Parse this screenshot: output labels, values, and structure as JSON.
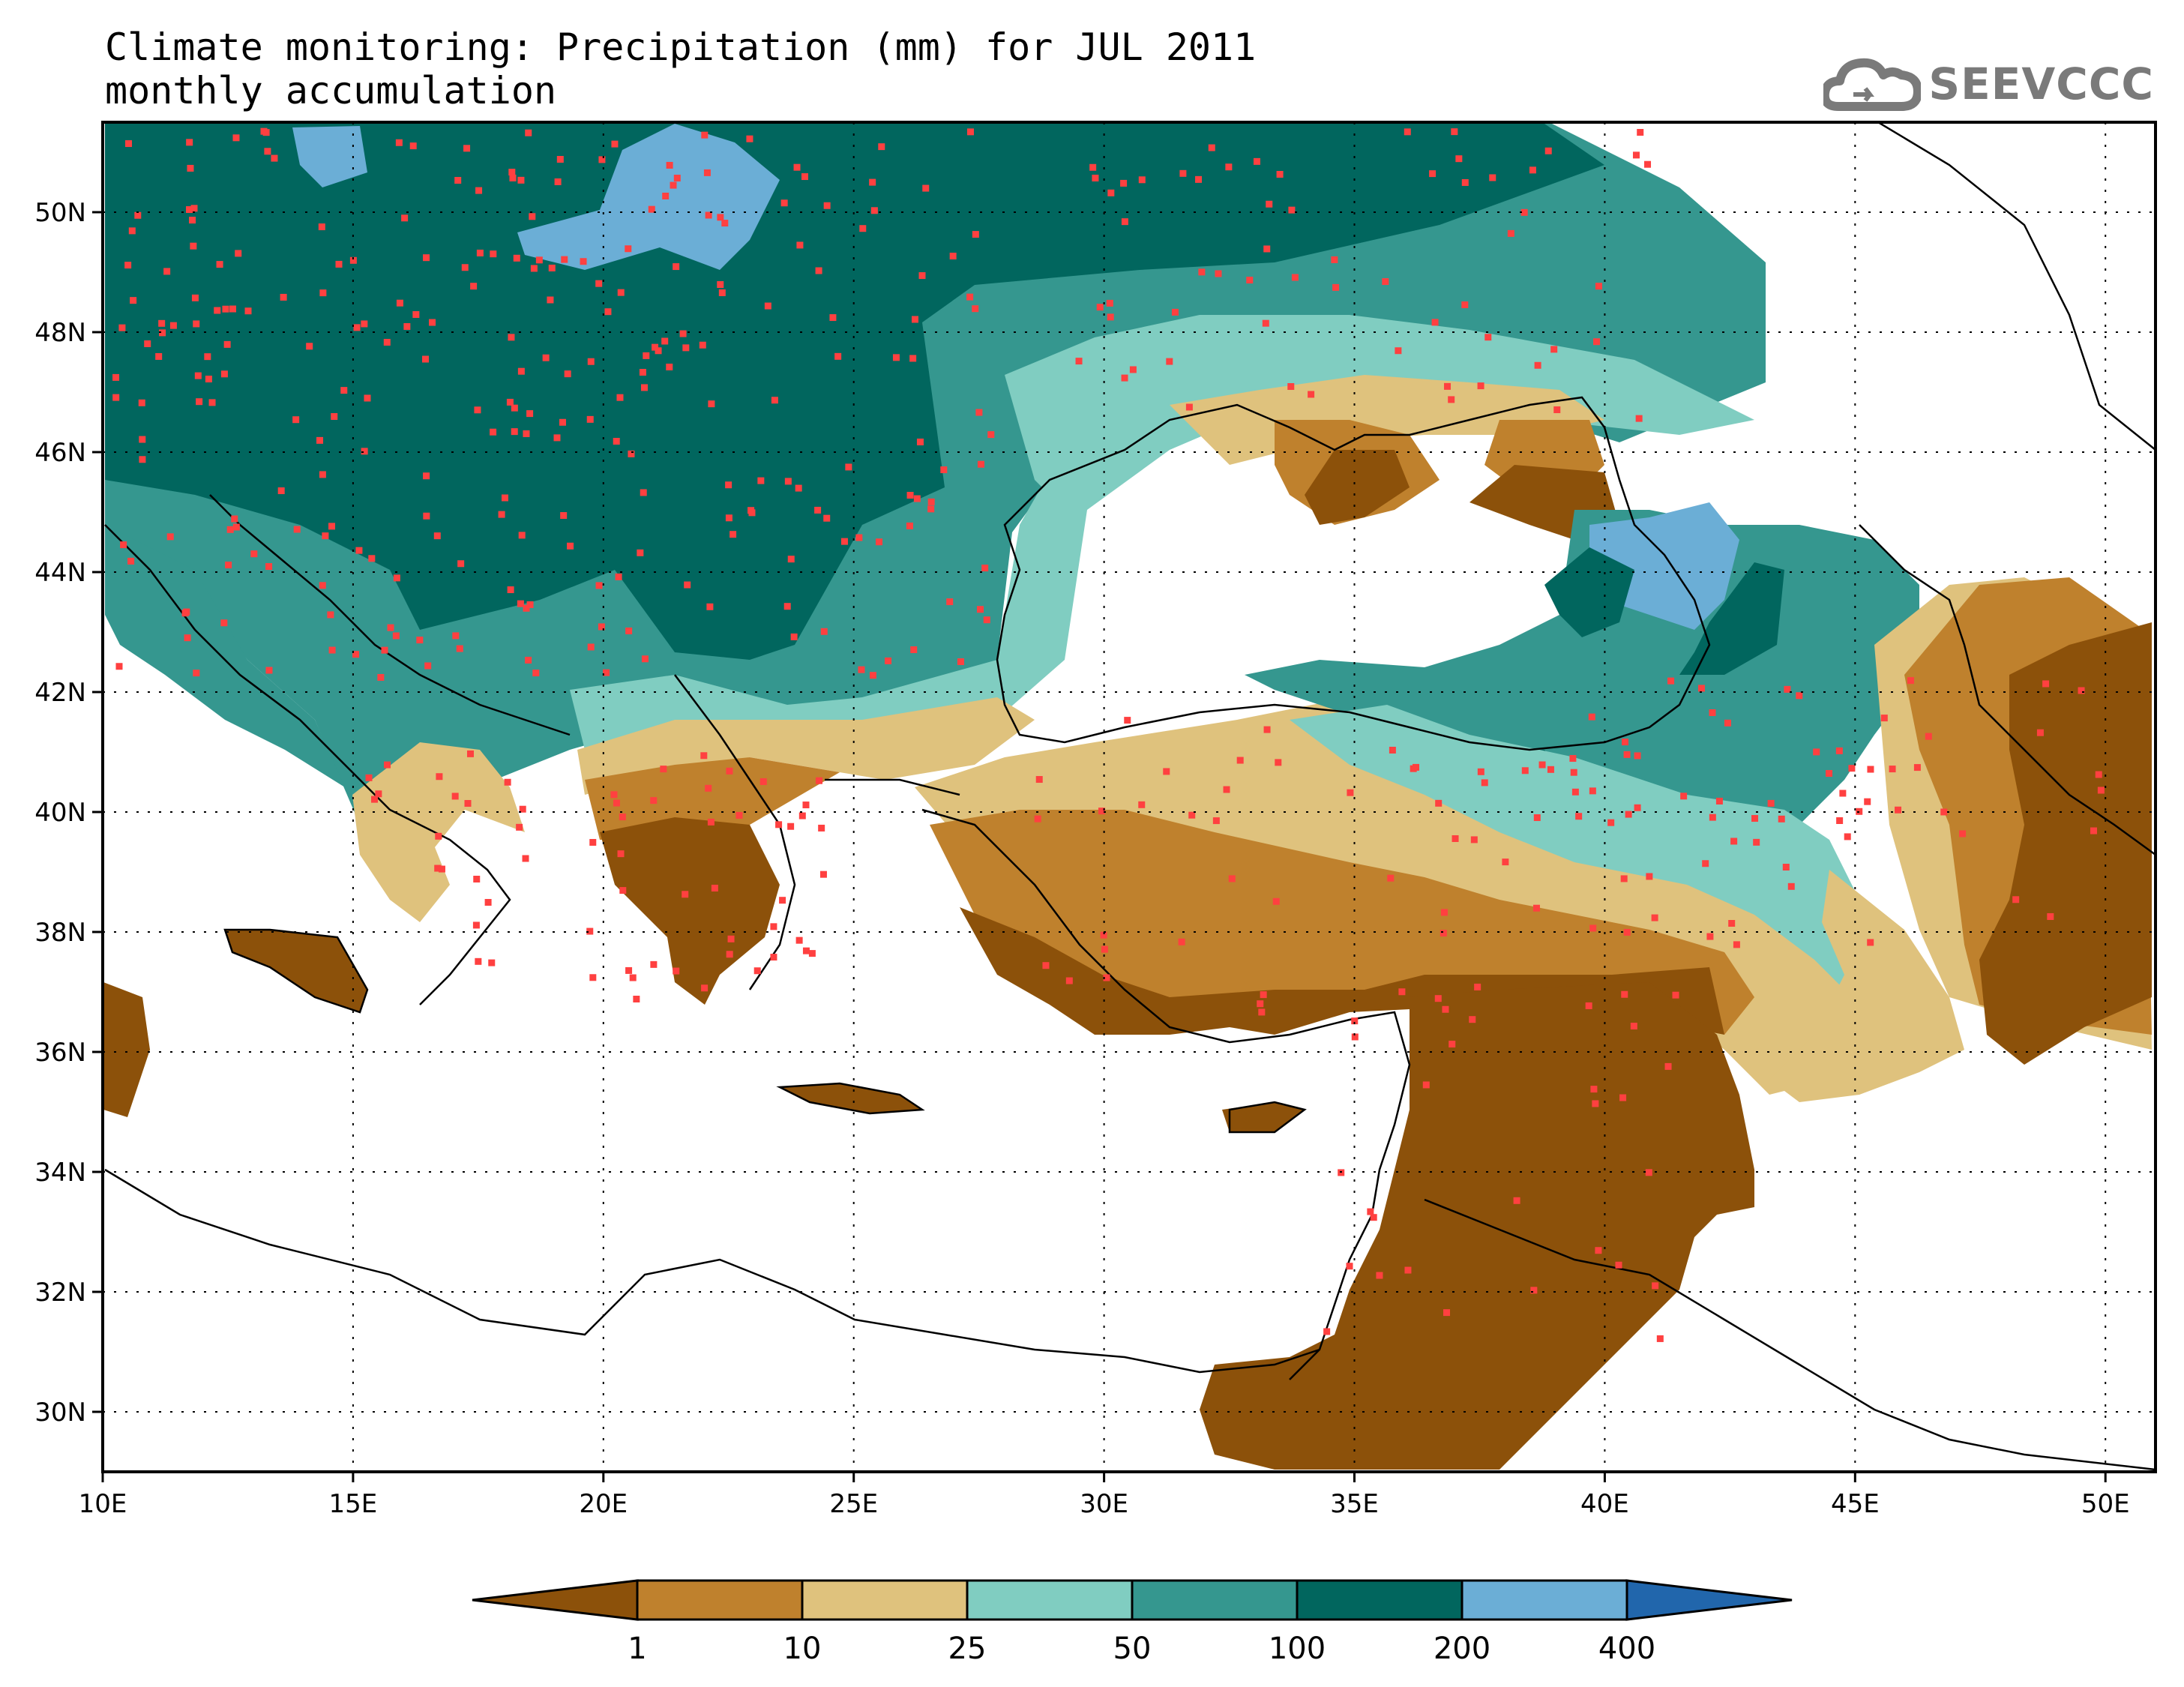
{
  "title": {
    "line1": "Climate monitoring: Precipitation (mm) for JUL 2011",
    "line2": "monthly accumulation"
  },
  "logo": {
    "icon": "cloud-icon",
    "text": "SEEVCCC"
  },
  "map": {
    "lon_range": [
      10,
      51
    ],
    "lat_range": [
      29,
      51.5
    ],
    "lon_ticks": [
      "10E",
      "15E",
      "20E",
      "25E",
      "30E",
      "35E",
      "40E",
      "45E",
      "50E"
    ],
    "lat_ticks": [
      "30N",
      "32N",
      "34N",
      "36N",
      "38N",
      "40N",
      "42N",
      "44N",
      "46N",
      "48N",
      "50N"
    ],
    "gridlines": "dotted",
    "station_marker_color": "#ff4040"
  },
  "colorbar": {
    "labels": [
      "1",
      "10",
      "25",
      "50",
      "100",
      "200",
      "400"
    ],
    "colors": [
      "#8c510a",
      "#bf812d",
      "#dfc27d",
      "#80cdc1",
      "#35978f",
      "#01665e",
      "#6baed6",
      "#2166ac"
    ]
  }
}
